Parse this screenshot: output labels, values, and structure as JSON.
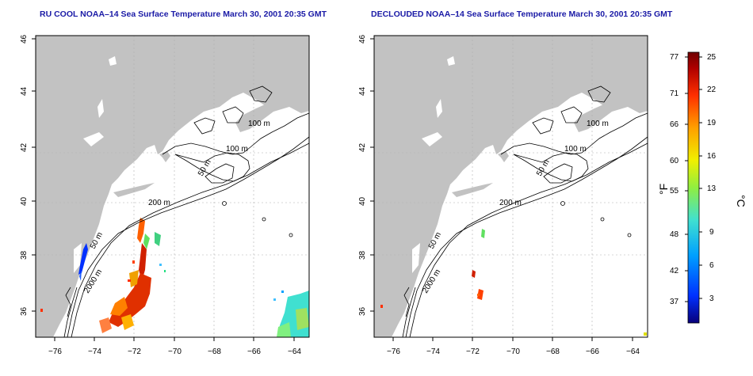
{
  "panels": [
    {
      "title": "RU COOL NOAA–14 Sea Surface Temperature March 30, 2001 20:35 GMT",
      "contour_labels": [
        "100 m",
        "100 m",
        "50 m",
        "200 m",
        "50 m",
        "2000 m"
      ]
    },
    {
      "title": "DECLOUDED NOAA–14 Sea Surface Temperature March 30, 2001 20:35 GMT",
      "contour_labels": [
        "100 m",
        "100 m",
        "50 m",
        "200 m",
        "50 m",
        "2000 m"
      ]
    }
  ],
  "axes": {
    "x_ticks": [
      "−76",
      "−74",
      "−72",
      "−70",
      "−68",
      "−66",
      "−64"
    ],
    "y_ticks": [
      "36",
      "38",
      "40",
      "42",
      "44",
      "46"
    ]
  },
  "colorbar": {
    "fahrenheit_ticks": [
      "77",
      "71",
      "66",
      "60",
      "55",
      "48",
      "42",
      "37"
    ],
    "celsius_ticks": [
      "25",
      "22",
      "19",
      "16",
      "13",
      "9",
      "6",
      "3"
    ],
    "fahrenheit_unit": "°F",
    "celsius_unit": "°C",
    "colors": [
      "#08007a",
      "#0030ff",
      "#00a0ff",
      "#40e0d0",
      "#90ee40",
      "#f0f000",
      "#ffa000",
      "#ff3000",
      "#b00000",
      "#700000"
    ]
  },
  "colors": {
    "land": "#c2c2c2",
    "water": "#ffffff",
    "title": "#1a1aa6",
    "grid": "#b0b0b0"
  }
}
